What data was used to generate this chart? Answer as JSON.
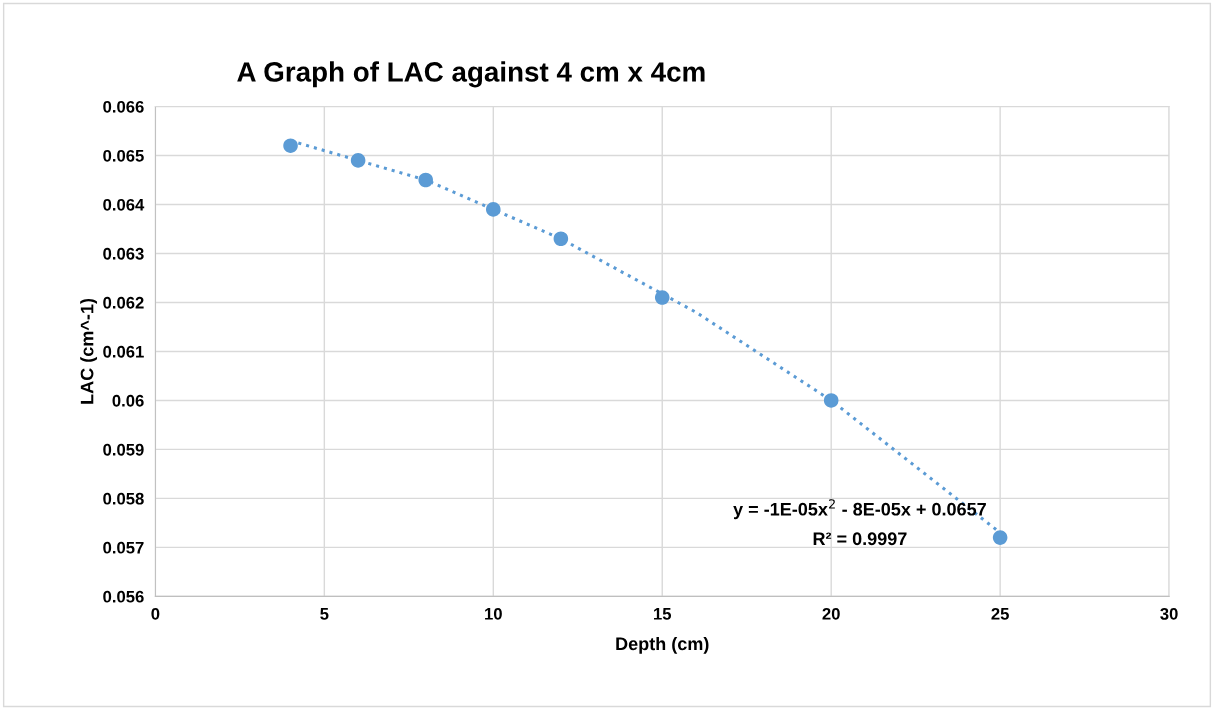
{
  "chart_data": {
    "type": "scatter",
    "title": "A Graph of LAC against 4 cm x 4cm",
    "xlabel": "Depth (cm)",
    "ylabel": "LAC (cm^-1)",
    "series": [
      {
        "color": "#5b9bd5",
        "marker": "circle",
        "x": [
          4,
          6,
          8,
          10,
          12,
          15,
          20,
          25
        ],
        "values": [
          0.0652,
          0.0649,
          0.0645,
          0.0639,
          0.0633,
          0.0621,
          0.06,
          0.0572
        ]
      },
      {
        "type": "line",
        "color": "#5b9bd5",
        "line_style": "dotted",
        "x": [
          4,
          8,
          12,
          16,
          20,
          25
        ],
        "values": [
          0.0653,
          0.0645,
          0.0633,
          0.0618,
          0.06,
          0.0573
        ]
      }
    ],
    "annotations": [
      "y = -1E-05x$^{2}$ - 8E-05x + 0.0657",
      "R² = 0.9997"
    ],
    "xlim": [
      0,
      30
    ],
    "xticks": [
      0,
      5,
      10,
      15,
      20,
      25,
      30
    ],
    "ylim": [
      0.056,
      0.066
    ],
    "yticks": [
      0.056,
      0.057,
      0.058,
      0.059,
      0.06,
      0.061,
      0.062,
      0.063,
      0.064,
      0.065,
      0.066
    ],
    "grid": true,
    "legend": false
  }
}
